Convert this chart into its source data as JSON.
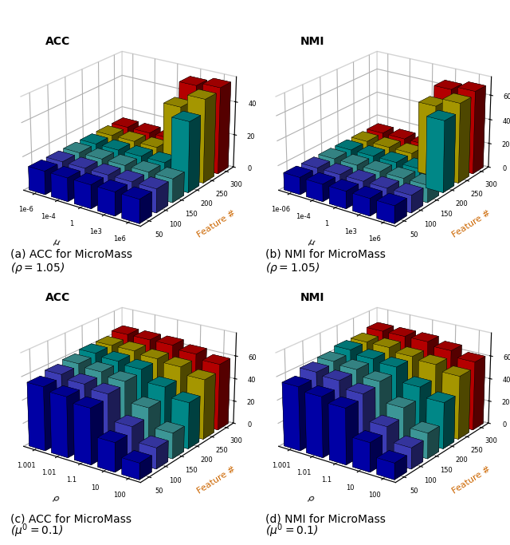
{
  "subplots": [
    {
      "title": "ACC",
      "caption_line1": "(a) ACC for MicroMass",
      "caption_line2": "($\\rho = 1.05$)",
      "xlabel": "$\\mu$",
      "ylabel": "Feature #",
      "x_ticks": [
        "1e-6",
        "1e-4",
        "1",
        "1e3",
        "1e6"
      ],
      "y_ticks": [
        "50",
        "100",
        "150",
        "200",
        "250",
        "300"
      ],
      "zlim": [
        0,
        55
      ],
      "zticks": [
        0,
        20,
        40
      ],
      "data": [
        [
          14,
          14,
          14,
          14,
          14,
          14
        ],
        [
          14,
          14,
          14,
          14,
          14,
          14
        ],
        [
          14,
          14,
          14,
          14,
          14,
          14
        ],
        [
          14,
          14,
          14,
          14,
          42,
          50
        ],
        [
          14,
          14,
          14,
          42,
          50,
          52
        ]
      ]
    },
    {
      "title": "NMI",
      "caption_line1": "(b) NMI for MicroMass",
      "caption_line2": "($\\rho = 1.05$)",
      "xlabel": "$\\mu$",
      "ylabel": "Feature #",
      "x_ticks": [
        "1e-06",
        "1e-4",
        "1",
        "1e3",
        "1e6"
      ],
      "y_ticks": [
        "50",
        "100",
        "150",
        "200",
        "250",
        "300"
      ],
      "zlim": [
        0,
        75
      ],
      "zticks": [
        0,
        20,
        40,
        60
      ],
      "data": [
        [
          14,
          14,
          14,
          14,
          14,
          14
        ],
        [
          14,
          14,
          14,
          14,
          14,
          14
        ],
        [
          14,
          14,
          14,
          14,
          14,
          14
        ],
        [
          14,
          14,
          14,
          14,
          58,
          65
        ],
        [
          14,
          14,
          14,
          58,
          65,
          68
        ]
      ]
    },
    {
      "title": "ACC",
      "caption_line1": "(c) ACC for MicroMass",
      "caption_line2": "($\\mu^0 = 0.1$)",
      "xlabel": "$\\rho$",
      "ylabel": "Feature #",
      "x_ticks": [
        "1.001",
        "1.01",
        "1.1",
        "10",
        "100"
      ],
      "y_ticks": [
        "50",
        "100",
        "150",
        "200",
        "250",
        "300"
      ],
      "zlim": [
        0,
        80
      ],
      "zticks": [
        0,
        20,
        40,
        60
      ],
      "data": [
        [
          55,
          58,
          60,
          62,
          62,
          65
        ],
        [
          52,
          55,
          58,
          60,
          62,
          65
        ],
        [
          48,
          52,
          55,
          58,
          60,
          65
        ],
        [
          25,
          30,
          38,
          48,
          58,
          62
        ],
        [
          14,
          18,
          22,
          40,
          52,
          58
        ]
      ]
    },
    {
      "title": "NMI",
      "caption_line1": "(d) NMI for MicroMass",
      "caption_line2": "($\\mu^0 = 0.1$)",
      "xlabel": "$\\rho$",
      "ylabel": "Feature #",
      "x_ticks": [
        "1.001",
        "1.01",
        "1.1",
        "10",
        "100"
      ],
      "y_ticks": [
        "50",
        "100",
        "150",
        "200",
        "250",
        "300"
      ],
      "zlim": [
        0,
        80
      ],
      "zticks": [
        0,
        20,
        40,
        60
      ],
      "data": [
        [
          55,
          60,
          62,
          65,
          65,
          68
        ],
        [
          52,
          58,
          60,
          62,
          65,
          68
        ],
        [
          48,
          52,
          55,
          60,
          62,
          68
        ],
        [
          25,
          30,
          38,
          48,
          60,
          65
        ],
        [
          14,
          18,
          22,
          40,
          55,
          60
        ]
      ]
    }
  ],
  "bar_colors_by_y": [
    "#0000bb",
    "#4444cc",
    "#44aaaa",
    "#009999",
    "#bbaa00",
    "#cc0000"
  ],
  "bar_alpha": 1.0,
  "figsize": [
    6.4,
    6.83
  ],
  "elev": 22,
  "azim": -55
}
